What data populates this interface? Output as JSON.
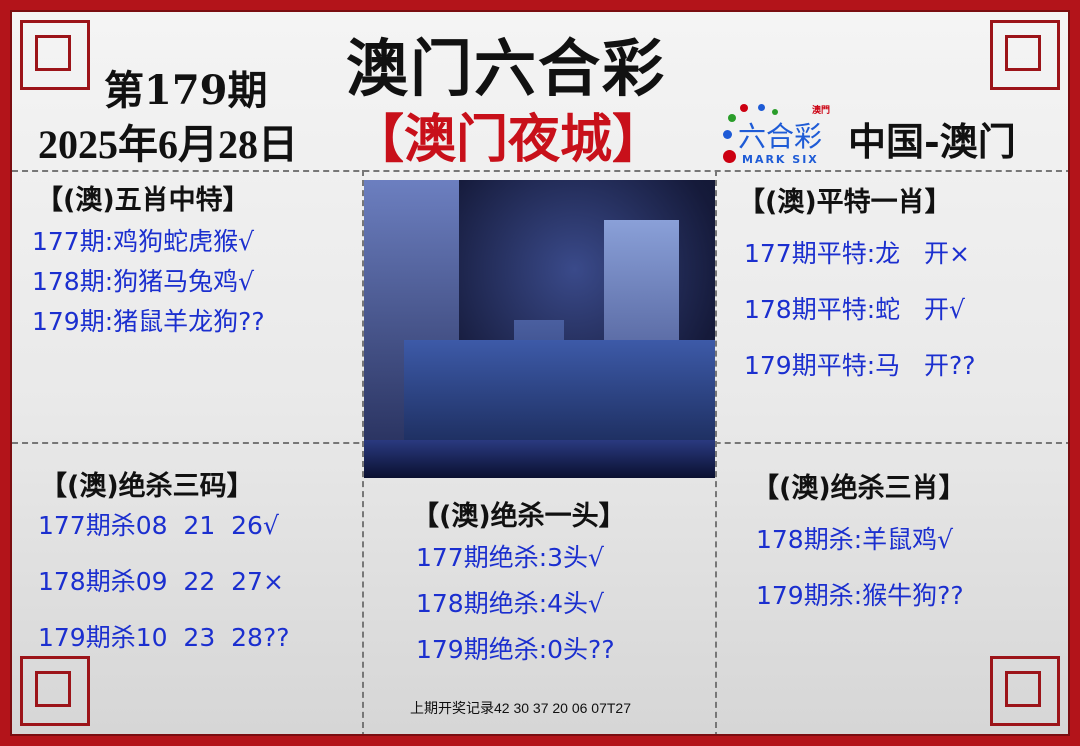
{
  "header": {
    "issue": "第179期",
    "date": "2025年6月28日",
    "title": "澳门六合彩",
    "subtitle": "【澳门夜城】",
    "region": "中国-澳门",
    "logo": {
      "top": "澳門",
      "main": "六合彩",
      "sub": "MARK SIX"
    }
  },
  "colors": {
    "border": "#b3141a",
    "text_blue": "#1b2fcf",
    "subtitle_red": "#c8101a"
  },
  "sections": {
    "wuxiao": {
      "title": "【(澳)五肖中特】",
      "rows": [
        "177期:鸡狗蛇虎猴√",
        "178期:狗猪马兔鸡√",
        "179期:猪鼠羊龙狗??"
      ]
    },
    "pingte": {
      "title": "【(澳)平特一肖】",
      "rows": [
        "177期平特:龙   开×",
        "178期平特:蛇   开√",
        "179期平特:马   开??"
      ]
    },
    "sanma": {
      "title": "【(澳)绝杀三码】",
      "rows": [
        "177期杀08  21  26√",
        "178期杀09  22  27×",
        "179期杀10  23  28??"
      ]
    },
    "yitou": {
      "title": "【(澳)绝杀一头】",
      "rows": [
        "177期绝杀:3头√",
        "178期绝杀:4头√",
        "179期绝杀:0头??"
      ]
    },
    "sanxiao": {
      "title": "【(澳)绝杀三肖】",
      "rows": [
        "178期杀:羊鼠鸡√",
        "179期杀:猴牛狗??"
      ]
    }
  },
  "footer": {
    "last_draw": "上期开奖记录42 30 37 20 06 07T27"
  }
}
